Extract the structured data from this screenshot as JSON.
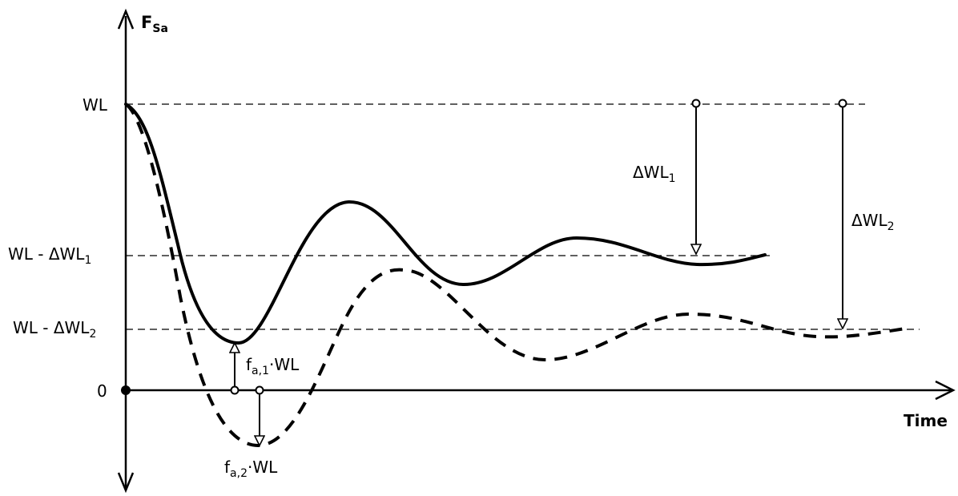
{
  "axes": {
    "y_label_main": "F",
    "y_label_sub": "Sa",
    "x_label": "Time"
  },
  "levels": {
    "wl": "WL",
    "wl_minus_dwl1_main": "WL - ΔWL",
    "wl_minus_dwl1_sub": "1",
    "wl_minus_dwl2_main": "WL - ΔWL",
    "wl_minus_dwl2_sub": "2",
    "zero": "0"
  },
  "annotations": {
    "dwl1_main": "ΔWL",
    "dwl1_sub": "1",
    "dwl2_main": "ΔWL",
    "dwl2_sub": "2",
    "fa1_main": "f",
    "fa1_sub": "a,1",
    "fa1_tail": "·WL",
    "fa2_main": "f",
    "fa2_sub": "a,2",
    "fa2_tail": "·WL"
  },
  "curves": {
    "solid": "response 1 (solid)",
    "dashed": "response 2 (dashed)"
  }
}
